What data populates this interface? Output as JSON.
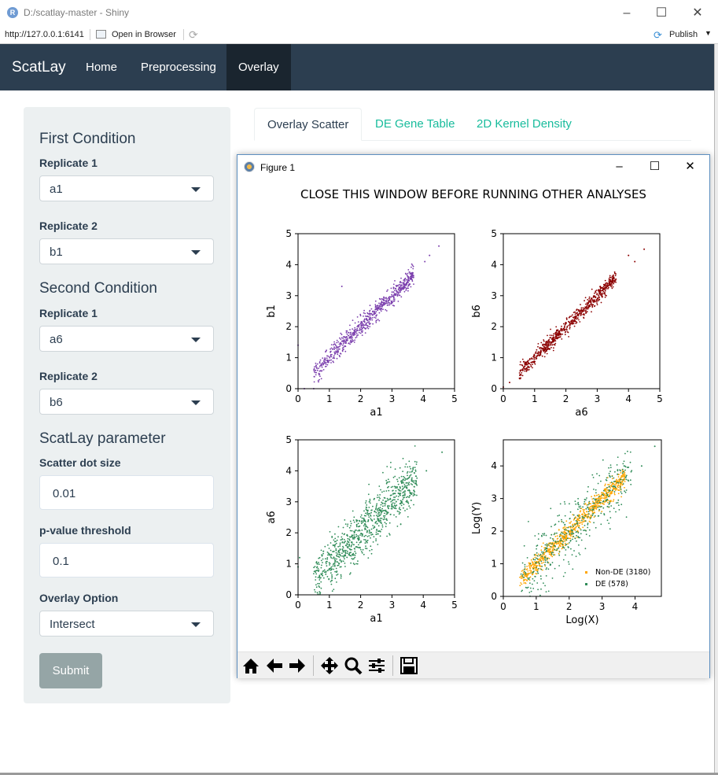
{
  "window": {
    "title": "D:/scatlay-master - Shiny",
    "app_icon_letter": "R"
  },
  "addressbar": {
    "url": "http://127.0.0.1:6141",
    "open_in_browser": "Open in Browser",
    "publish": "Publish"
  },
  "navbar": {
    "brand": "ScatLay",
    "items": [
      {
        "label": "Home"
      },
      {
        "label": "Preprocessing"
      },
      {
        "label": "Overlay",
        "active": true
      }
    ]
  },
  "sidebar": {
    "first_condition": {
      "heading": "First Condition",
      "rep1_label": "Replicate 1",
      "rep1_value": "a1",
      "rep2_label": "Replicate 2",
      "rep2_value": "b1"
    },
    "second_condition": {
      "heading": "Second Condition",
      "rep1_label": "Replicate 1",
      "rep1_value": "a6",
      "rep2_label": "Replicate 2",
      "rep2_value": "b6"
    },
    "params": {
      "heading": "ScatLay parameter",
      "dot_size_label": "Scatter dot size",
      "dot_size_value": "0.01",
      "pvalue_label": "p-value threshold",
      "pvalue_value": "0.1",
      "overlay_label": "Overlay Option",
      "overlay_value": "Intersect"
    },
    "submit_label": "Submit"
  },
  "tabs": [
    {
      "label": "Overlay Scatter",
      "active": true
    },
    {
      "label": "DE Gene Table"
    },
    {
      "label": "2D Kernel Density"
    }
  ],
  "figure_window": {
    "title": "Figure 1",
    "suptitle": "CLOSE THIS WINDOW BEFORE RUNNING OTHER ANALYSES"
  },
  "colors": {
    "navbar": "#2c3e50",
    "nav_active": "#1a252f",
    "tab_link": "#18bc9c",
    "purple": "#7b3fad",
    "darkred": "#8b0000",
    "green": "#2e8b57",
    "orange": "#ffa500"
  },
  "toolbar_icons": [
    "home-icon",
    "back-arrow-icon",
    "forward-arrow-icon",
    "pan-icon",
    "zoom-icon",
    "configure-subplots-icon",
    "save-icon"
  ],
  "chart_data": [
    {
      "type": "scatter",
      "xlabel": "a1",
      "ylabel": "b1",
      "xlim": [
        0,
        5
      ],
      "ylim": [
        0,
        5
      ],
      "xticks": [
        0,
        1,
        2,
        3,
        4,
        5
      ],
      "yticks": [
        0,
        1,
        2,
        3,
        4,
        5
      ],
      "color": "#7b3fad",
      "trend": {
        "x_from": 0.5,
        "x_to": 3.7,
        "slope": 1.0,
        "spread": 0.15,
        "count": 700
      },
      "points": [
        {
          "x": 0.0,
          "y": 1.4
        },
        {
          "x": 0.2,
          "y": 0.0
        },
        {
          "x": 0.5,
          "y": 0.0
        },
        {
          "x": 1.4,
          "y": 3.3
        },
        {
          "x": 4.2,
          "y": 4.3
        },
        {
          "x": 4.5,
          "y": 4.6
        },
        {
          "x": 4.05,
          "y": 4.1
        }
      ]
    },
    {
      "type": "scatter",
      "xlabel": "a6",
      "ylabel": "b6",
      "xlim": [
        0,
        5
      ],
      "ylim": [
        0,
        5
      ],
      "xticks": [
        0,
        1,
        2,
        3,
        4,
        5
      ],
      "yticks": [
        0,
        1,
        2,
        3,
        4,
        5
      ],
      "color": "#8b0000",
      "trend": {
        "x_from": 0.5,
        "x_to": 3.6,
        "slope": 1.0,
        "spread": 0.12,
        "count": 700
      },
      "points": [
        {
          "x": 0.0,
          "y": 0.05
        },
        {
          "x": 0.2,
          "y": 0.2
        },
        {
          "x": 4.2,
          "y": 4.1
        },
        {
          "x": 4.5,
          "y": 4.5
        },
        {
          "x": 4.0,
          "y": 4.3
        }
      ]
    },
    {
      "type": "scatter",
      "xlabel": "a1",
      "ylabel": "a6",
      "xlim": [
        0,
        5
      ],
      "ylim": [
        0,
        5
      ],
      "xticks": [
        0,
        1,
        2,
        3,
        4,
        5
      ],
      "yticks": [
        0,
        1,
        2,
        3,
        4,
        5
      ],
      "color": "#2e8b57",
      "trend": {
        "x_from": 0.5,
        "x_to": 3.8,
        "slope": 1.0,
        "spread": 0.4,
        "count": 900
      },
      "points": [
        {
          "x": 4.6,
          "y": 4.6
        },
        {
          "x": 4.1,
          "y": 4.0
        },
        {
          "x": 0.0,
          "y": 0.9
        },
        {
          "x": 0.05,
          "y": 1.2
        }
      ]
    },
    {
      "type": "scatter",
      "xlabel": "Log(X)",
      "ylabel": "Log(Y)",
      "xlim": [
        0,
        4.8
      ],
      "ylim": [
        0,
        4.8
      ],
      "xticks": [
        0,
        1,
        2,
        3,
        4
      ],
      "yticks": [
        0,
        1,
        2,
        3,
        4
      ],
      "series": [
        {
          "name": "Non-DE (3180)",
          "color": "#ffa500",
          "trend": {
            "x_from": 0.5,
            "x_to": 3.7,
            "slope": 1.0,
            "spread": 0.15,
            "count": 800
          }
        },
        {
          "name": "DE (578)",
          "color": "#2e8b57",
          "trend": {
            "x_from": 0.5,
            "x_to": 3.9,
            "slope": 1.0,
            "spread": 0.45,
            "count": 450
          },
          "points": [
            {
              "x": 4.6,
              "y": 4.6
            },
            {
              "x": 4.2,
              "y": 4.0
            }
          ]
        }
      ],
      "legend": "lower-right"
    }
  ]
}
